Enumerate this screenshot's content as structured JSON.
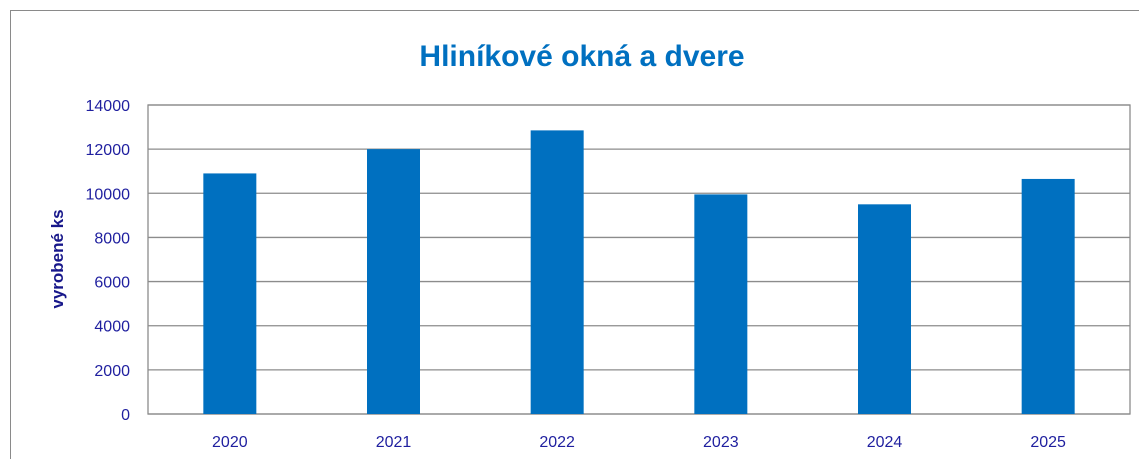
{
  "chart_data": {
    "type": "bar",
    "title": "Hliníkové okná a dvere",
    "xlabel": "",
    "ylabel": "vyrobené ks",
    "categories": [
      "2020",
      "2021",
      "2022",
      "2023",
      "2024",
      "2025"
    ],
    "values": [
      10900,
      12000,
      12850,
      9950,
      9500,
      10650
    ],
    "ylim": [
      0,
      14000
    ],
    "yticks": [
      0,
      2000,
      4000,
      6000,
      8000,
      10000,
      12000,
      14000
    ],
    "grid": true,
    "legend": false,
    "colors": {
      "bar": "#0070C0",
      "title": "#0070C0",
      "tick_text": "#1F1F9F",
      "ylabel": "#17178A",
      "grid": "#8C8C8C",
      "frame": "#8A8A8A"
    }
  }
}
